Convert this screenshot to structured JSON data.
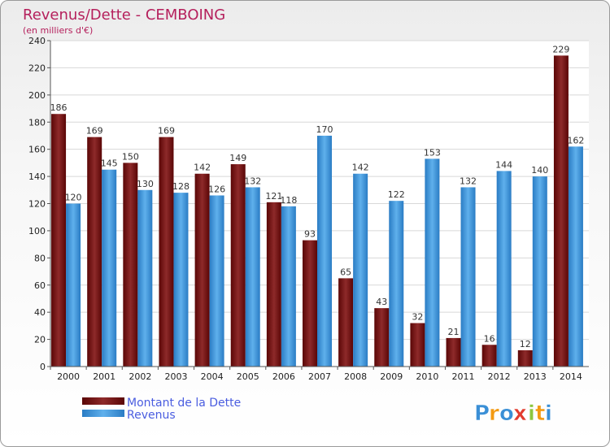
{
  "chart_data": {
    "type": "bar",
    "title": "Revenus/Dette - CEMBOING",
    "subtitle": "(en milliers d'€)",
    "categories": [
      "2000",
      "2001",
      "2002",
      "2003",
      "2004",
      "2005",
      "2006",
      "2007",
      "2008",
      "2009",
      "2010",
      "2011",
      "2012",
      "2013",
      "2014"
    ],
    "series": [
      {
        "name": "Montant de la Dette",
        "color": "#7a1010",
        "values": [
          186,
          169,
          150,
          169,
          142,
          149,
          121,
          93,
          65,
          43,
          32,
          21,
          16,
          12,
          229
        ]
      },
      {
        "name": "Revenus",
        "color": "#3d95dc",
        "values": [
          120,
          145,
          130,
          128,
          126,
          132,
          118,
          170,
          142,
          122,
          153,
          132,
          144,
          140,
          162
        ]
      }
    ],
    "ylim": [
      0,
      240
    ],
    "yticks": [
      0,
      20,
      40,
      60,
      80,
      100,
      120,
      140,
      160,
      180,
      200,
      220,
      240
    ],
    "grid": true,
    "legend_position": "bottom-left"
  },
  "logo": {
    "letters": [
      "P",
      "r",
      "o",
      "x",
      "i",
      "t",
      "i"
    ],
    "colors": [
      "#3a8fd6",
      "#f39a12",
      "#3a8fd6",
      "#e23b2e",
      "#8cc63e",
      "#f39a12",
      "#3a8fd6"
    ]
  }
}
